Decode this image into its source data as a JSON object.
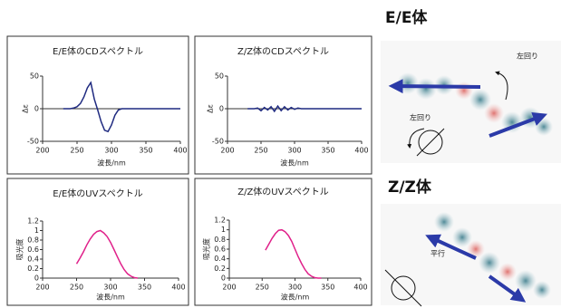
{
  "chart_data": [
    {
      "type": "line",
      "title": "E/E体のCDスペクトル",
      "x_label": "波長/nm",
      "y_label": "Δε",
      "x": [
        230,
        235,
        240,
        245,
        250,
        255,
        260,
        265,
        270,
        275,
        280,
        285,
        290,
        295,
        300,
        305,
        310,
        315,
        320,
        330,
        340,
        350,
        360,
        370,
        380,
        390,
        400
      ],
      "series": [
        {
          "color": "#1f2a80",
          "values": [
            0,
            0,
            0,
            1,
            3,
            8,
            18,
            32,
            40,
            15,
            -2,
            -20,
            -33,
            -35,
            -25,
            -10,
            -2,
            0,
            0,
            0,
            0,
            0,
            0,
            0,
            0,
            0,
            0
          ]
        }
      ],
      "xlim": [
        200,
        400
      ],
      "xticks": [
        200,
        250,
        300,
        350,
        400
      ],
      "ylim": [
        -50,
        50
      ],
      "yticks": [
        -50,
        0,
        50
      ]
    },
    {
      "type": "line",
      "title": "Z/Z体のCDスペクトル",
      "x_label": "波長/nm",
      "y_label": "Δε",
      "x": [
        230,
        240,
        245,
        250,
        255,
        260,
        265,
        270,
        275,
        280,
        285,
        290,
        295,
        300,
        305,
        310,
        320,
        330,
        340,
        350,
        360,
        370,
        380,
        390,
        400
      ],
      "series": [
        {
          "color": "#1f2a80",
          "values": [
            0,
            0,
            1,
            -3,
            2,
            -2,
            3,
            -4,
            4,
            -3,
            3,
            -2,
            2,
            -1,
            1,
            0,
            0,
            0,
            0,
            0,
            0,
            0,
            0,
            0,
            0
          ]
        }
      ],
      "xlim": [
        200,
        400
      ],
      "xticks": [
        200,
        250,
        300,
        350,
        400
      ],
      "ylim": [
        -50,
        50
      ],
      "yticks": [
        -50,
        0,
        50
      ]
    },
    {
      "type": "line",
      "title": "E/E体のUVスペクトル",
      "x_label": "波長/nm",
      "y_label": "吸光度",
      "x": [
        250,
        255,
        260,
        265,
        270,
        275,
        280,
        285,
        290,
        295,
        300,
        305,
        310,
        315,
        320,
        325,
        330,
        335,
        340
      ],
      "series": [
        {
          "color": "#e0218a",
          "values": [
            0.3,
            0.42,
            0.55,
            0.7,
            0.82,
            0.92,
            0.98,
            1.0,
            0.95,
            0.87,
            0.75,
            0.6,
            0.45,
            0.3,
            0.18,
            0.09,
            0.04,
            0.01,
            0
          ]
        }
      ],
      "xlim": [
        200,
        400
      ],
      "xticks": [
        200,
        250,
        300,
        350,
        400
      ],
      "ylim": [
        0,
        1.2
      ],
      "yticks": [
        0,
        0.2,
        0.4,
        0.6,
        0.8,
        1,
        1.2
      ]
    },
    {
      "type": "line",
      "title": "Z/Z体のUVスペクトル",
      "x_label": "波長/nm",
      "y_label": "吸光度",
      "x": [
        255,
        260,
        265,
        270,
        275,
        280,
        285,
        290,
        295,
        300,
        305,
        310,
        315,
        320,
        325,
        330,
        335,
        340
      ],
      "series": [
        {
          "color": "#e0218a",
          "values": [
            0.58,
            0.7,
            0.82,
            0.92,
            0.99,
            1.0,
            0.96,
            0.88,
            0.76,
            0.6,
            0.44,
            0.3,
            0.18,
            0.09,
            0.04,
            0.01,
            0,
            0
          ]
        }
      ],
      "xlim": [
        200,
        400
      ],
      "xticks": [
        200,
        250,
        300,
        350,
        400
      ],
      "ylim": [
        0,
        1.2
      ],
      "yticks": [
        0,
        0.2,
        0.4,
        0.6,
        0.8,
        1,
        1.2
      ]
    }
  ],
  "panels": [
    {
      "title": "E/E体",
      "notes": [
        "左回り",
        "左回り"
      ]
    },
    {
      "title": "Z/Z体",
      "notes": [
        "平行"
      ]
    }
  ]
}
